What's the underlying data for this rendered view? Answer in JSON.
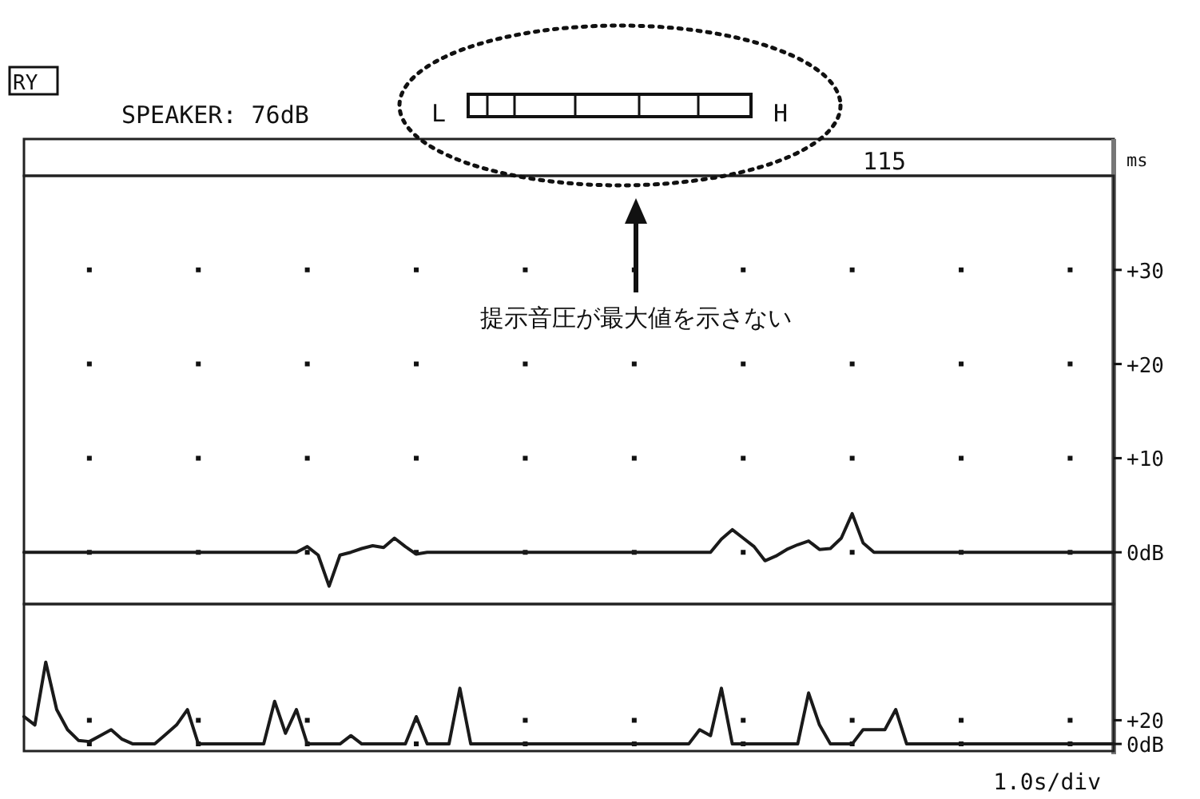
{
  "chart_data": [
    {
      "type": "line",
      "title": "SPEAKER: 76dB",
      "annotations": [
        "RY",
        "L",
        "H",
        "115",
        "ms",
        "提示音圧が最大値を示さない"
      ],
      "categories": [
        null,
        null,
        null,
        null,
        null,
        null,
        null,
        null,
        null,
        null,
        null,
        null,
        null,
        null,
        null,
        null,
        null,
        null,
        null,
        null,
        null,
        null,
        null,
        null,
        null,
        null,
        null,
        null,
        null,
        null,
        null,
        null,
        null,
        null,
        null,
        null,
        null,
        null,
        null,
        null,
        null,
        null,
        null,
        null,
        null,
        null,
        null,
        null,
        null,
        null,
        null,
        null,
        null,
        null,
        null,
        null,
        null,
        null,
        null,
        null,
        null,
        null,
        null,
        null,
        null,
        null,
        null,
        null,
        null,
        null,
        null,
        null,
        null,
        null,
        null,
        null,
        null,
        null,
        null,
        null,
        null,
        null,
        null,
        null,
        null,
        null,
        null,
        null,
        null,
        null,
        null,
        null,
        null,
        null,
        null,
        null,
        null,
        null,
        null,
        null,
        null
      ],
      "series": [
        {
          "color": "#1a1a1a",
          "values": [
            0,
            0,
            0,
            0,
            0,
            0,
            0,
            0,
            0,
            0,
            0,
            0,
            0,
            0,
            0,
            0,
            0,
            0,
            0,
            0,
            0,
            0,
            0,
            0,
            0,
            0,
            0.6,
            -0.3,
            -3.6,
            -0.3,
            0,
            0.4,
            0.7,
            0.5,
            1.5,
            0.6,
            -0.2,
            0,
            0,
            0,
            0,
            0,
            0,
            0,
            0,
            0,
            0,
            0,
            0,
            0,
            0,
            0,
            0,
            0,
            0,
            0,
            0,
            0,
            0,
            0,
            0,
            0,
            0,
            0,
            1.4,
            2.4,
            1.5,
            0.6,
            -0.9,
            -0.4,
            0.3,
            0.8,
            1.2,
            0.3,
            0.4,
            1.5,
            4.1,
            1.0,
            0,
            0,
            0,
            0,
            0,
            0,
            0,
            0,
            0,
            0,
            0,
            0,
            0,
            0,
            0,
            0,
            0,
            0,
            0,
            0,
            0,
            0,
            0
          ]
        }
      ],
      "ylim": [
        -5.5,
        40
      ],
      "yticks": [
        {
          "value": 0,
          "label": "0dB"
        },
        {
          "value": 10,
          "label": "+10"
        },
        {
          "value": 20,
          "label": "+20"
        },
        {
          "value": 30,
          "label": "+30"
        }
      ],
      "grid": true
    },
    {
      "type": "line",
      "xlabel": "1.0s/div",
      "categories": [
        null,
        null,
        null,
        null,
        null,
        null,
        null,
        null,
        null,
        null,
        null,
        null,
        null,
        null,
        null,
        null,
        null,
        null,
        null,
        null,
        null,
        null,
        null,
        null,
        null,
        null,
        null,
        null,
        null,
        null,
        null,
        null,
        null,
        null,
        null,
        null,
        null,
        null,
        null,
        null,
        null,
        null,
        null,
        null,
        null,
        null,
        null,
        null,
        null,
        null,
        null,
        null,
        null,
        null,
        null,
        null,
        null,
        null,
        null,
        null,
        null,
        null,
        null,
        null,
        null,
        null,
        null,
        null,
        null,
        null,
        null,
        null,
        null,
        null,
        null,
        null,
        null,
        null,
        null,
        null,
        null,
        null,
        null,
        null,
        null,
        null,
        null,
        null,
        null,
        null,
        null,
        null,
        null,
        null,
        null,
        null,
        null,
        null,
        null,
        null,
        null
      ],
      "series": [
        {
          "color": "#1a1a1a",
          "values": [
            23,
            16,
            69,
            29,
            12,
            3,
            2,
            7,
            12,
            4,
            0,
            0,
            0,
            8,
            16,
            29,
            0,
            0,
            0,
            0,
            0,
            0,
            0,
            36,
            9,
            29,
            0,
            0,
            0,
            0,
            7,
            0,
            0,
            0,
            0,
            0,
            23,
            0,
            0,
            0,
            47,
            0,
            0,
            0,
            0,
            0,
            0,
            0,
            0,
            0,
            0,
            0,
            0,
            0,
            0,
            0,
            0,
            0,
            0,
            0,
            0,
            0,
            12,
            7,
            47,
            0,
            0,
            0,
            0,
            0,
            0,
            0,
            43,
            16,
            0,
            0,
            0,
            12,
            12,
            12,
            29,
            0,
            0,
            0,
            0,
            0,
            0,
            0,
            0,
            0,
            0,
            0,
            0,
            0,
            0,
            0,
            0,
            0,
            0,
            0,
            0
          ]
        }
      ],
      "ylim": [
        -6,
        118
      ],
      "yticks": [
        {
          "value": 0,
          "label": "0dB"
        },
        {
          "value": 20,
          "label": "+20"
        }
      ],
      "grid": true
    }
  ]
}
